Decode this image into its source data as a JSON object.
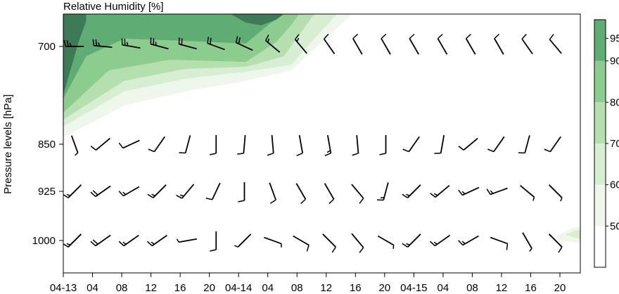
{
  "chart_data": {
    "type": "heatmap",
    "title": "Relative Humidity [%]",
    "ylabel": "Pressure levels [hPa]",
    "xlabel": "",
    "y_levels": [
      700,
      850,
      925,
      1000
    ],
    "x_tick_labels": [
      "04-13",
      "04",
      "08",
      "12",
      "16",
      "20",
      "04-14",
      "04",
      "08",
      "12",
      "16",
      "20",
      "04-15",
      "04",
      "08",
      "12",
      "16",
      "20"
    ],
    "colorbar": {
      "ticks": [
        50,
        60,
        70,
        80,
        90,
        95
      ],
      "levels": [
        40,
        50,
        60,
        70,
        80,
        90,
        100
      ],
      "colors": [
        "#ffffff",
        "#eff7ec",
        "#d8eed3",
        "#b6dfb0",
        "#8ccc8f",
        "#5fac74",
        "#3d7a56"
      ]
    },
    "humidity_bands": {
      "level_700_and_above": [
        {
          "time_h": 0,
          "max_rh": 95
        },
        {
          "time_h": 12,
          "max_rh": 90
        },
        {
          "time_h": 24,
          "max_rh": 95
        },
        {
          "time_h": 30,
          "max_rh": 80
        },
        {
          "time_h": 36,
          "max_rh": 40
        }
      ],
      "level_1000": [
        {
          "time_h": 64,
          "max_rh": 60
        }
      ]
    },
    "wind_barbs": {
      "time_step_h": 3,
      "levels": {
        "700": [
          {
            "dir": 270,
            "speed": 25
          },
          {
            "dir": 275,
            "speed": 25
          },
          {
            "dir": 280,
            "speed": 25
          },
          {
            "dir": 285,
            "speed": 25
          },
          {
            "dir": 285,
            "speed": 20
          },
          {
            "dir": 290,
            "speed": 20
          },
          {
            "dir": 295,
            "speed": 20
          },
          {
            "dir": 310,
            "speed": 15
          },
          {
            "dir": 320,
            "speed": 15
          },
          {
            "dir": 325,
            "speed": 10
          },
          {
            "dir": 330,
            "speed": 10
          },
          {
            "dir": 330,
            "speed": 10
          },
          {
            "dir": 330,
            "speed": 10
          },
          {
            "dir": 330,
            "speed": 10
          },
          {
            "dir": 330,
            "speed": 10
          },
          {
            "dir": 330,
            "speed": 10
          },
          {
            "dir": 325,
            "speed": 10
          },
          {
            "dir": 320,
            "speed": 10
          }
        ],
        "850": [
          {
            "dir": 160,
            "speed": 5
          },
          {
            "dir": 230,
            "speed": 10
          },
          {
            "dir": 245,
            "speed": 10
          },
          {
            "dir": 215,
            "speed": 10
          },
          {
            "dir": 195,
            "speed": 10
          },
          {
            "dir": 180,
            "speed": 10
          },
          {
            "dir": 185,
            "speed": 10
          },
          {
            "dir": 175,
            "speed": 10
          },
          {
            "dir": 170,
            "speed": 10
          },
          {
            "dir": 170,
            "speed": 15
          },
          {
            "dir": 175,
            "speed": 10
          },
          {
            "dir": 180,
            "speed": 10
          },
          {
            "dir": 215,
            "speed": 10
          },
          {
            "dir": 190,
            "speed": 10
          },
          {
            "dir": 230,
            "speed": 10
          },
          {
            "dir": 215,
            "speed": 10
          },
          {
            "dir": 195,
            "speed": 10
          },
          {
            "dir": 215,
            "speed": 10
          }
        ],
        "925": [
          {
            "dir": 225,
            "speed": 15
          },
          {
            "dir": 235,
            "speed": 20
          },
          {
            "dir": 240,
            "speed": 15
          },
          {
            "dir": 225,
            "speed": 15
          },
          {
            "dir": 220,
            "speed": 15
          },
          {
            "dir": 205,
            "speed": 10
          },
          {
            "dir": 180,
            "speed": 10
          },
          {
            "dir": 160,
            "speed": 10
          },
          {
            "dir": 150,
            "speed": 10
          },
          {
            "dir": 150,
            "speed": 10
          },
          {
            "dir": 140,
            "speed": 10
          },
          {
            "dir": 195,
            "speed": 15
          },
          {
            "dir": 225,
            "speed": 15
          },
          {
            "dir": 230,
            "speed": 15
          },
          {
            "dir": 245,
            "speed": 15
          },
          {
            "dir": 250,
            "speed": 15
          },
          {
            "dir": 130,
            "speed": 5
          },
          {
            "dir": 135,
            "speed": 5
          }
        ],
        "1000": [
          {
            "dir": 225,
            "speed": 15
          },
          {
            "dir": 235,
            "speed": 20
          },
          {
            "dir": 235,
            "speed": 15
          },
          {
            "dir": 235,
            "speed": 15
          },
          {
            "dir": 260,
            "speed": 5
          },
          {
            "dir": 180,
            "speed": 10
          },
          {
            "dir": 225,
            "speed": 5
          },
          {
            "dir": 110,
            "speed": 5
          },
          {
            "dir": 120,
            "speed": 10
          },
          {
            "dir": 135,
            "speed": 10
          },
          {
            "dir": 140,
            "speed": 10
          },
          {
            "dir": 120,
            "speed": 5
          },
          {
            "dir": 225,
            "speed": 15
          },
          {
            "dir": 235,
            "speed": 15
          },
          {
            "dir": 240,
            "speed": 15
          },
          {
            "dir": 110,
            "speed": 10
          },
          {
            "dir": 150,
            "speed": 5
          },
          {
            "dir": 135,
            "speed": 10
          }
        ]
      }
    }
  }
}
